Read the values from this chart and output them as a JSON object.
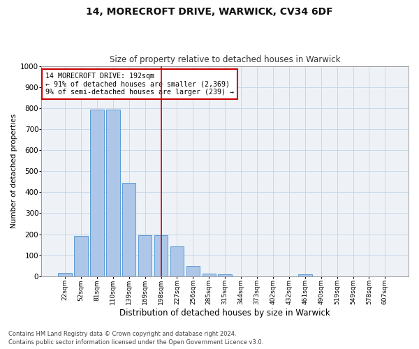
{
  "title_line1": "14, MORECROFT DRIVE, WARWICK, CV34 6DF",
  "title_line2": "Size of property relative to detached houses in Warwick",
  "xlabel": "Distribution of detached houses by size in Warwick",
  "ylabel": "Number of detached properties",
  "bar_labels": [
    "22sqm",
    "52sqm",
    "81sqm",
    "110sqm",
    "139sqm",
    "169sqm",
    "198sqm",
    "227sqm",
    "256sqm",
    "285sqm",
    "315sqm",
    "344sqm",
    "373sqm",
    "402sqm",
    "432sqm",
    "461sqm",
    "490sqm",
    "519sqm",
    "549sqm",
    "578sqm",
    "607sqm"
  ],
  "bar_values": [
    15,
    193,
    793,
    793,
    443,
    197,
    197,
    143,
    48,
    13,
    10,
    0,
    0,
    0,
    0,
    10,
    0,
    0,
    0,
    0,
    0
  ],
  "bar_color": "#aec6e8",
  "bar_edge_color": "#5b9bd5",
  "vline_x_index": 6,
  "vline_color": "#cc0000",
  "ylim": [
    0,
    1000
  ],
  "yticks": [
    0,
    100,
    200,
    300,
    400,
    500,
    600,
    700,
    800,
    900,
    1000
  ],
  "annotation_text": "14 MORECROFT DRIVE: 192sqm\n← 91% of detached houses are smaller (2,369)\n9% of semi-detached houses are larger (239) →",
  "annotation_box_color": "#cc0000",
  "grid_color": "#c8d8e8",
  "background_color": "#eef2f7",
  "footer_line1": "Contains HM Land Registry data © Crown copyright and database right 2024.",
  "footer_line2": "Contains public sector information licensed under the Open Government Licence v3.0."
}
